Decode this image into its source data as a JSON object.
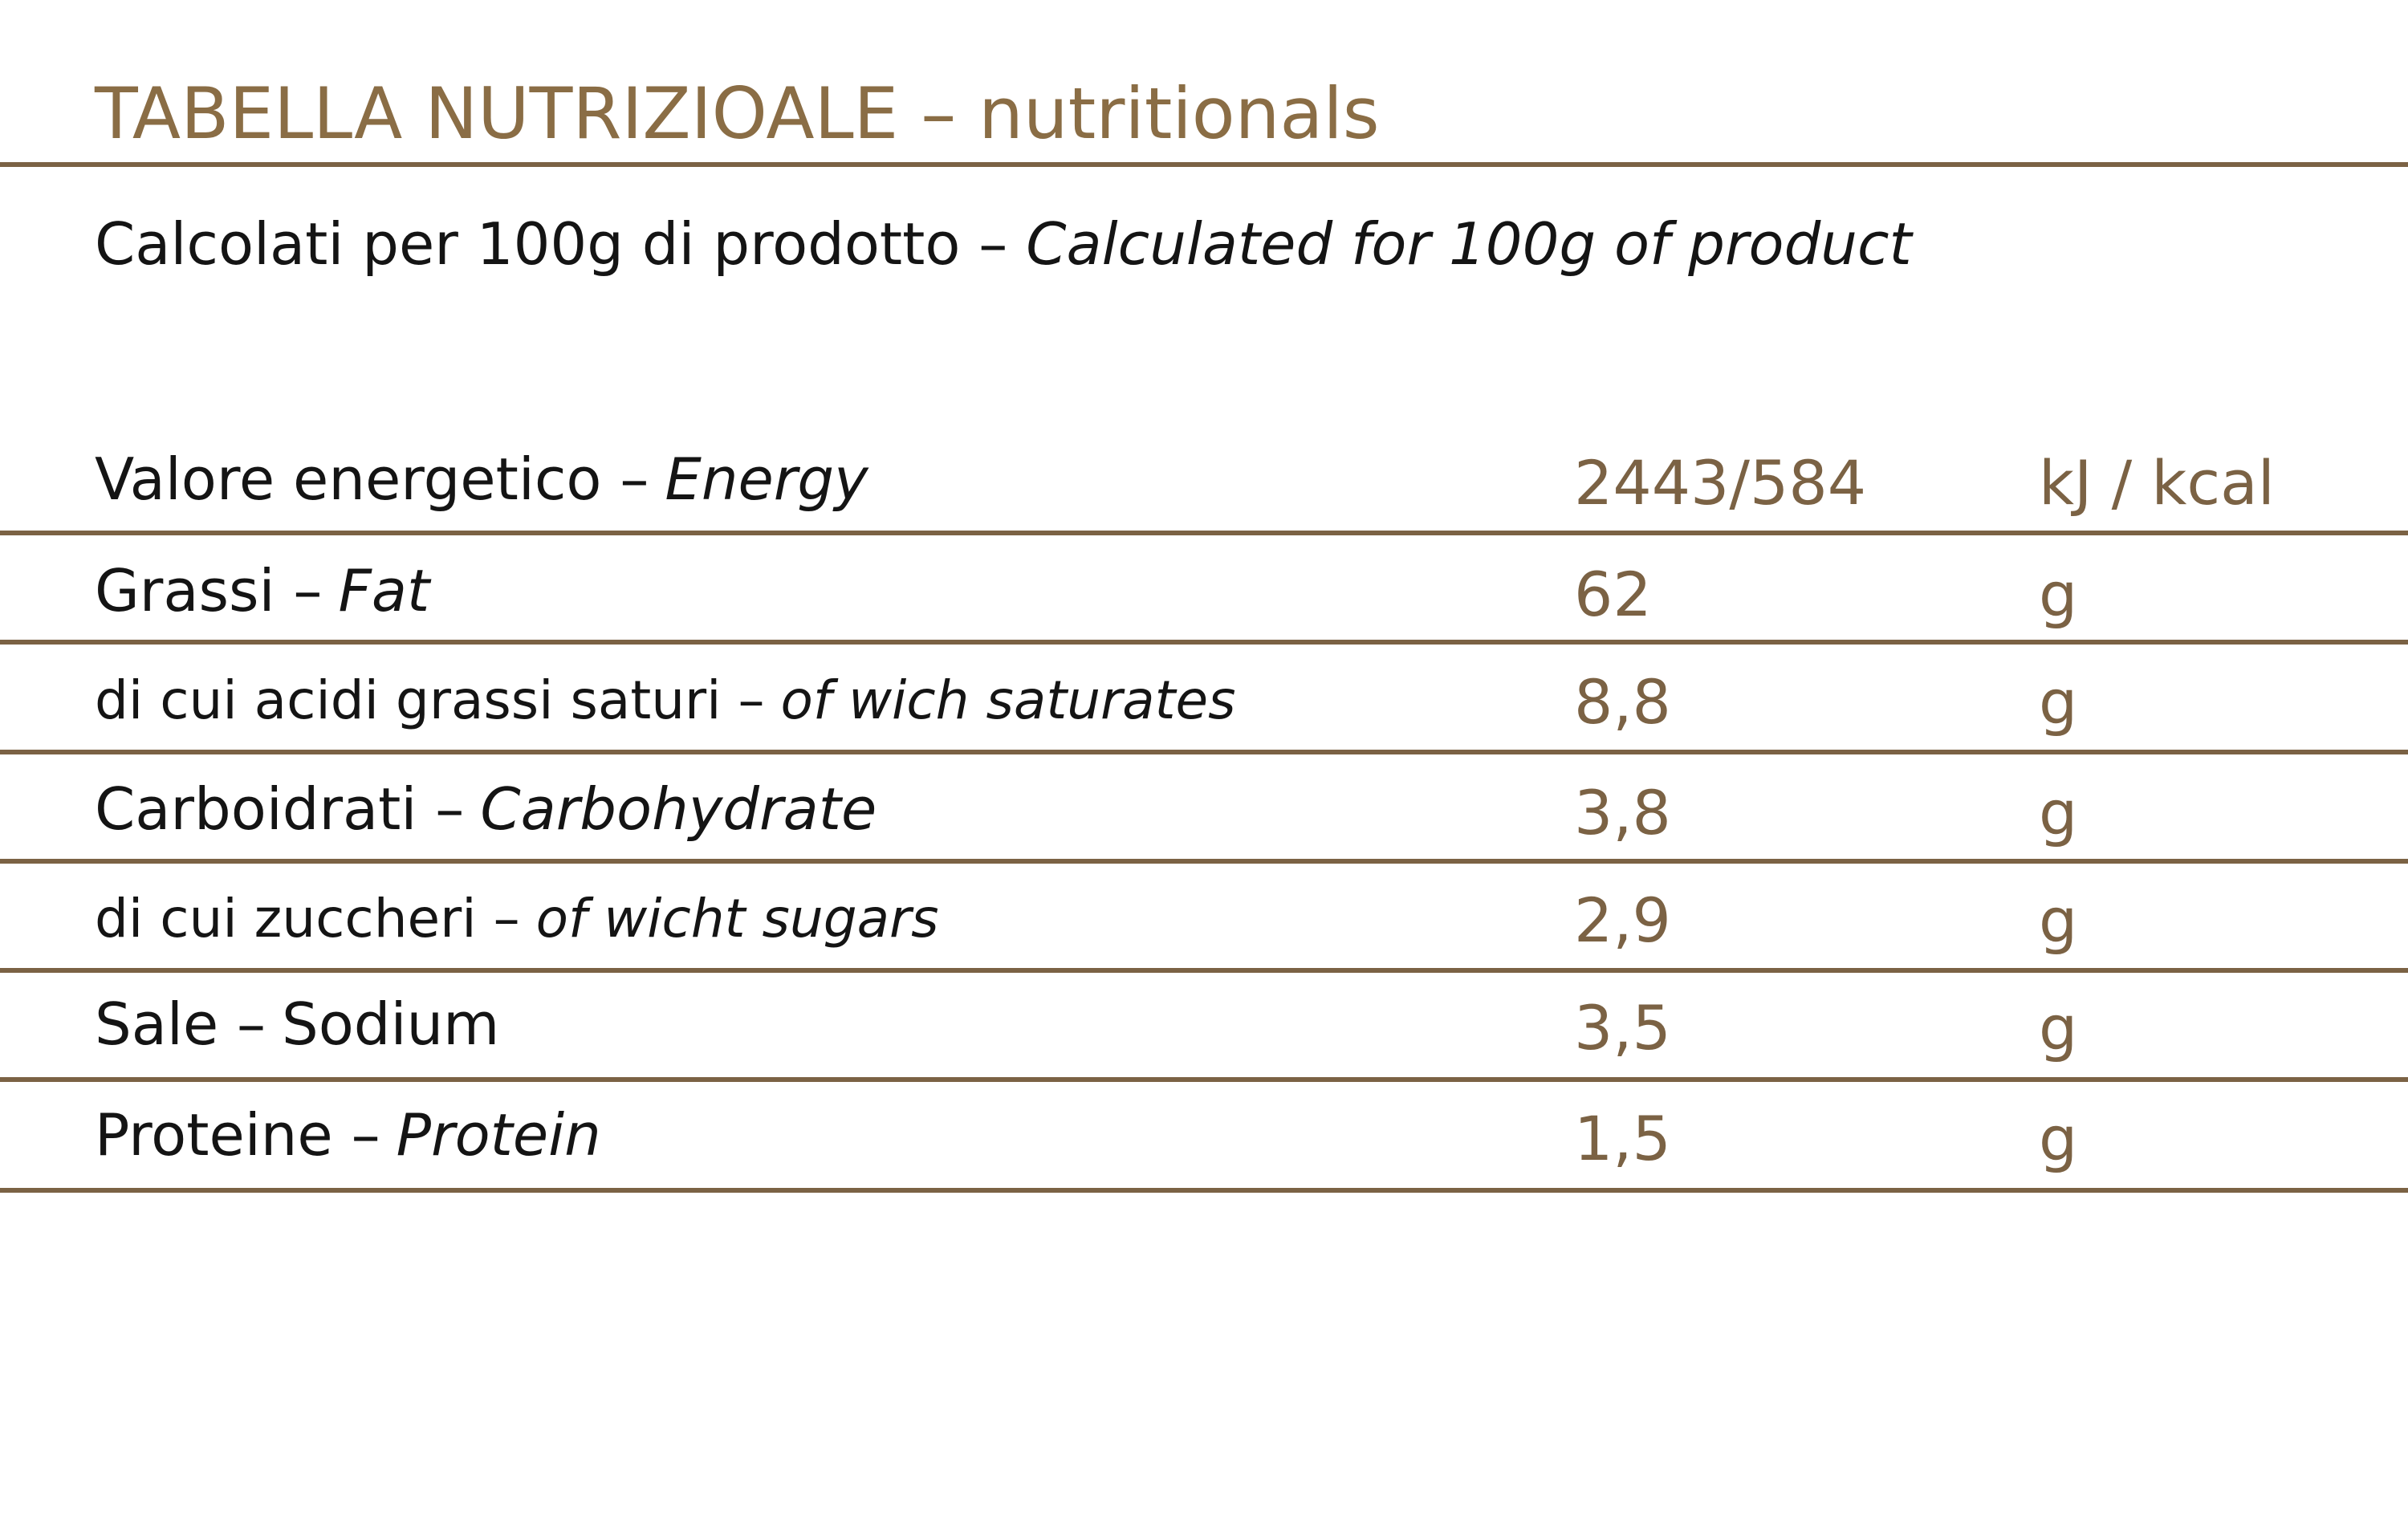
{
  "header": {
    "title": "TABELLA NUTRIZIOALE – nutritionals",
    "subtitle": {
      "it": "Calcolati per 100g di prodotto –",
      "en": "Calculated for 100g of product"
    }
  },
  "table": {
    "rows": [
      {
        "it": "Valore energetico –",
        "en": "Energy",
        "en_italic": true,
        "value": "2443/584",
        "unit": "kJ / kcal"
      },
      {
        "it": "Grassi –",
        "en": "Fat",
        "en_italic": true,
        "value": "62",
        "unit": "g"
      },
      {
        "it": "di cui acidi grassi saturi –",
        "en": "of wich saturates",
        "en_italic": true,
        "value": "8,8",
        "unit": "g"
      },
      {
        "it": "Carboidrati –",
        "en": "Carbohydrate",
        "en_italic": true,
        "value": "3,8",
        "unit": "g"
      },
      {
        "it": "di cui zuccheri –",
        "en": "of wicht sugars",
        "en_italic": true,
        "value": "2,9",
        "unit": "g"
      },
      {
        "it": "Sale –",
        "en": "Sodium",
        "en_italic": false,
        "value": "3,5",
        "unit": "g"
      },
      {
        "it": "Proteine –",
        "en": "Protein",
        "en_italic": true,
        "value": "1,5",
        "unit": "g"
      }
    ]
  }
}
